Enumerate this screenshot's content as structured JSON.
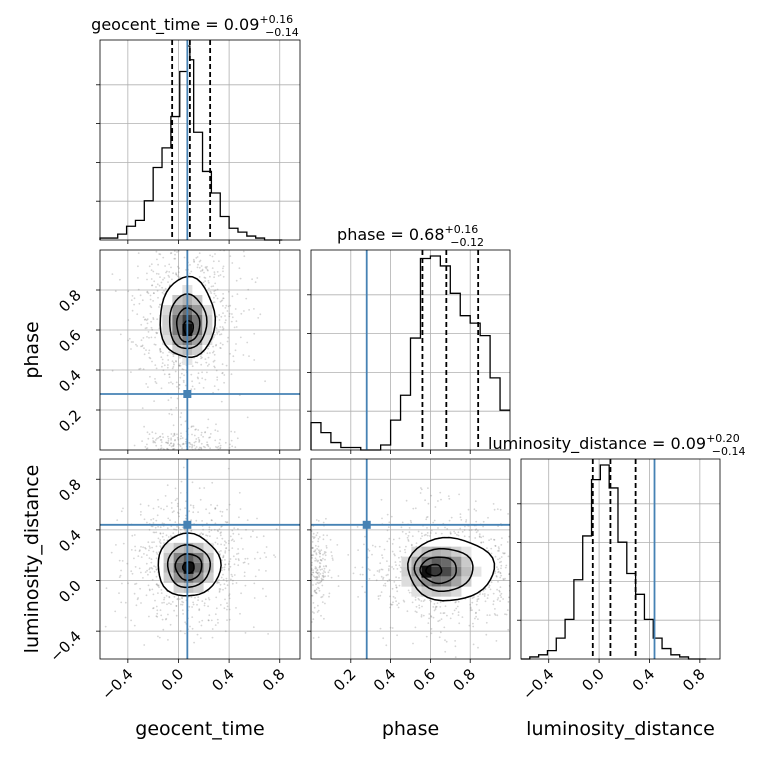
{
  "chart_data": {
    "type": "corner",
    "parameters": [
      "geocent_time",
      "phase",
      "luminosity_distance"
    ],
    "axis_labels": {
      "geocent_time": "geocent_time",
      "phase": "phase",
      "luminosity_distance": "luminosity_distance"
    },
    "ranges": {
      "geocent_time": [
        -0.62,
        0.96
      ],
      "phase": [
        0.0,
        1.0
      ],
      "luminosity_distance": [
        -0.62,
        0.96
      ]
    },
    "ticks": {
      "geocent_time": [
        -0.4,
        0.0,
        0.4,
        0.8
      ],
      "phase": [
        0.2,
        0.4,
        0.6,
        0.8
      ],
      "luminosity_distance": [
        -0.4,
        0.0,
        0.4,
        0.8
      ]
    },
    "tick_labels": {
      "geocent_time": [
        "−0.4",
        "0.0",
        "0.4",
        "0.8"
      ],
      "phase": [
        "0.2",
        "0.4",
        "0.6",
        "0.8"
      ],
      "luminosity_distance": [
        "−0.4",
        "0.0",
        "0.4",
        "0.8"
      ]
    },
    "injection": {
      "geocent_time": 0.07,
      "phase": 0.28,
      "luminosity_distance": 0.44
    },
    "injection_color": "#4682b4",
    "line_color": "#000000",
    "grid": true,
    "titles": [
      {
        "param": "geocent_time",
        "prefix": "geocent_time = ",
        "median": "0.09",
        "plus": "+0.16",
        "minus": "−0.14"
      },
      {
        "param": "phase",
        "prefix": "phase = ",
        "median": "0.68",
        "plus": "+0.16",
        "minus": "−0.12"
      },
      {
        "param": "luminosity_distance",
        "prefix": "luminosity_distance = ",
        "median": "0.09",
        "plus": "+0.20",
        "minus": "−0.14"
      }
    ],
    "marginals": {
      "geocent_time": {
        "bin_edges": [
          -0.62,
          -0.55,
          -0.48,
          -0.41,
          -0.34,
          -0.27,
          -0.2,
          -0.13,
          -0.06,
          0.01,
          0.07,
          0.09,
          0.12,
          0.19,
          0.26,
          0.33,
          0.4,
          0.47,
          0.54,
          0.61,
          0.68,
          0.75,
          0.82
        ],
        "counts": [
          0.01,
          0.01,
          0.03,
          0.07,
          0.1,
          0.2,
          0.37,
          0.47,
          0.63,
          0.86,
          0.99,
          0.92,
          0.55,
          0.35,
          0.24,
          0.12,
          0.06,
          0.04,
          0.02,
          0.01,
          0.0,
          0.0
        ],
        "quantiles": [
          -0.05,
          0.09,
          0.25
        ]
      },
      "phase": {
        "bin_edges": [
          0.0,
          0.05,
          0.1,
          0.15,
          0.2,
          0.25,
          0.3,
          0.35,
          0.4,
          0.45,
          0.5,
          0.55,
          0.6,
          0.65,
          0.7,
          0.75,
          0.8,
          0.85,
          0.9,
          0.95,
          1.0
        ],
        "counts": [
          0.11,
          0.07,
          0.03,
          0.01,
          0.01,
          0.0,
          0.0,
          0.02,
          0.12,
          0.22,
          0.45,
          0.77,
          0.78,
          0.74,
          0.63,
          0.54,
          0.51,
          0.46,
          0.29,
          0.16
        ],
        "quantiles": [
          0.56,
          0.68,
          0.84
        ]
      },
      "luminosity_distance": {
        "bin_edges": [
          -0.62,
          -0.55,
          -0.48,
          -0.41,
          -0.34,
          -0.27,
          -0.2,
          -0.13,
          -0.06,
          0.01,
          0.08,
          0.15,
          0.22,
          0.29,
          0.36,
          0.43,
          0.5,
          0.57,
          0.64,
          0.71,
          0.78,
          0.85
        ],
        "counts": [
          0.0,
          0.01,
          0.02,
          0.04,
          0.1,
          0.19,
          0.38,
          0.59,
          0.86,
          0.93,
          0.82,
          0.56,
          0.41,
          0.31,
          0.19,
          0.1,
          0.05,
          0.02,
          0.01,
          0.0,
          0.0
        ],
        "quantiles": [
          -0.05,
          0.09,
          0.29
        ]
      }
    },
    "joint": [
      {
        "x": "geocent_time",
        "y": "phase",
        "center": [
          0.07,
          0.66
        ],
        "spread": [
          0.14,
          0.13
        ],
        "core": [
          0.08,
          0.6
        ],
        "density_peak": [
          0.07,
          0.6
        ]
      },
      {
        "x": "geocent_time",
        "y": "luminosity_distance",
        "center": [
          0.08,
          0.12
        ],
        "spread": [
          0.16,
          0.16
        ],
        "core": [
          0.08,
          0.1
        ],
        "density_peak": [
          0.08,
          0.1
        ]
      },
      {
        "x": "phase",
        "y": "luminosity_distance",
        "center": [
          0.7,
          0.09
        ],
        "spread": [
          0.14,
          0.16
        ],
        "core": [
          0.6,
          0.08
        ],
        "density_peak": [
          0.58,
          0.07
        ]
      }
    ]
  }
}
